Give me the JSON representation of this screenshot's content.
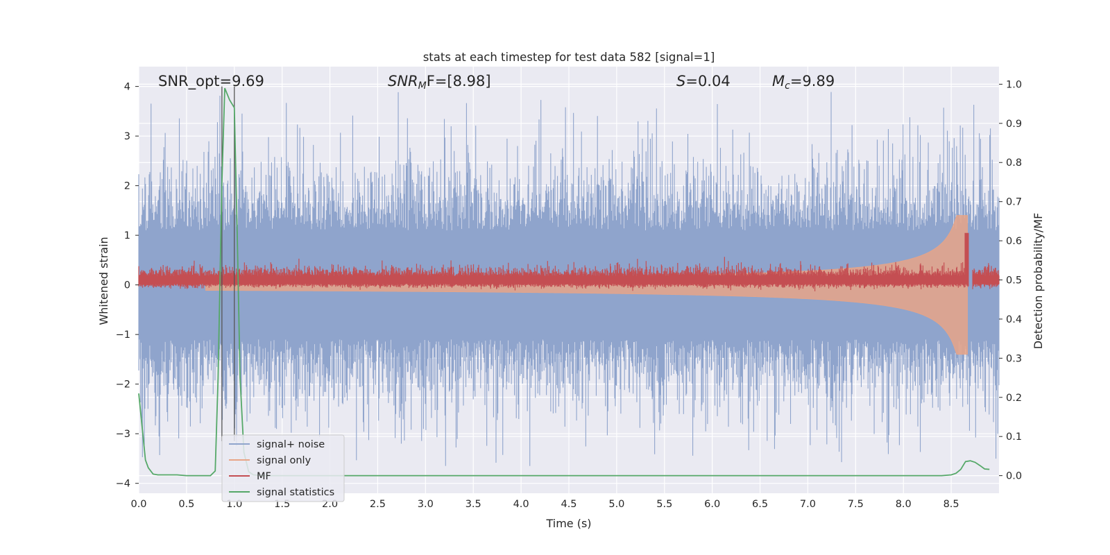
{
  "chart_data": {
    "type": "line",
    "title": "stats at each timestep for test data 582 [signal=1]",
    "xlabel": "Time (s)",
    "ylabel_left": "Whitened strain",
    "ylabel_right": "Detection probability/MF",
    "xlim": [
      0.0,
      9.0
    ],
    "ylim_left": [
      -4.2,
      4.4
    ],
    "ylim_right": [
      -0.045,
      1.045
    ],
    "grid": true,
    "legend_position": "lower-left",
    "x_ticks": [
      "0.0",
      "0.5",
      "1.0",
      "1.5",
      "2.0",
      "2.5",
      "3.0",
      "3.5",
      "4.0",
      "4.5",
      "5.0",
      "5.5",
      "6.0",
      "6.5",
      "7.0",
      "7.5",
      "8.0",
      "8.5"
    ],
    "y_ticks_left": [
      "4",
      "3",
      "2",
      "1",
      "0",
      "−1",
      "−2",
      "−3",
      "−4"
    ],
    "y_ticks_right": [
      "1.0",
      "0.9",
      "0.8",
      "0.7",
      "0.6",
      "0.5",
      "0.4",
      "0.3",
      "0.2",
      "0.1",
      "0.0"
    ],
    "annotations": {
      "snr_opt": "SNR_opt=9.69",
      "snr_mf_main": "SNR",
      "snr_mf_sub": "M",
      "snr_mf_tail": "F=[8.98]",
      "s_italic": "S",
      "s_value": "=0.04",
      "mc_main": "M",
      "mc_sub": "c",
      "mc_value": "=9.89"
    },
    "vertical_lines": [
      0.87,
      1.0
    ],
    "series": [
      {
        "name": "signal+ noise",
        "color": "#8fa4cc",
        "axis": "left",
        "noise_amplitude_range": [
          -3.65,
          4.0
        ]
      },
      {
        "name": "signal only",
        "color": "#e8a587",
        "axis": "left",
        "chirp_end_time": 8.67,
        "peak_amplitude": 1.4
      },
      {
        "name": "MF",
        "color": "#c44e52",
        "axis": "right",
        "baseline": 0.5,
        "peak": 0.62,
        "peak_time": 8.67
      },
      {
        "name": "signal statistics",
        "color": "#55a868",
        "axis": "right",
        "x": [
          0.0,
          0.07,
          0.1,
          0.15,
          0.2,
          0.3,
          0.4,
          0.5,
          0.6,
          0.7,
          0.75,
          0.8,
          0.83,
          0.87,
          0.9,
          0.95,
          1.0,
          1.03,
          1.06,
          1.1,
          1.15,
          1.2,
          1.3,
          1.5,
          2.0,
          3.0,
          4.0,
          5.0,
          6.0,
          7.0,
          8.0,
          8.4,
          8.5,
          8.55,
          8.6,
          8.65,
          8.7,
          8.75,
          8.8,
          8.85,
          8.9
        ],
        "y": [
          0.21,
          0.04,
          0.02,
          0.004,
          0.002,
          0.002,
          0.002,
          0.0,
          0.0,
          0.0,
          0.0,
          0.012,
          0.25,
          0.75,
          0.99,
          0.96,
          0.94,
          0.62,
          0.25,
          0.06,
          0.01,
          0.002,
          0.0,
          0.0,
          0.0,
          0.0,
          0.0,
          0.0,
          0.0,
          0.0,
          0.0,
          0.0,
          0.002,
          0.006,
          0.016,
          0.036,
          0.038,
          0.034,
          0.026,
          0.017,
          0.016
        ]
      }
    ]
  }
}
